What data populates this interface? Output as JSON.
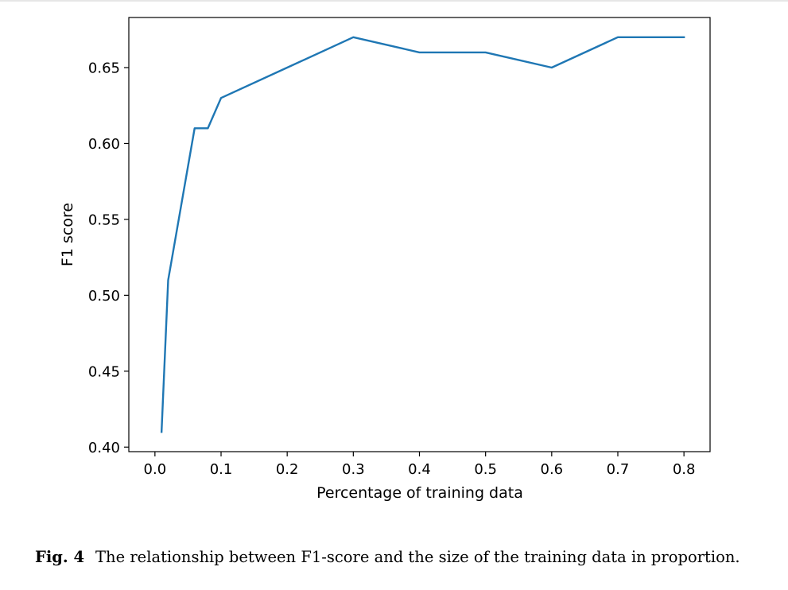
{
  "chart_data": {
    "type": "line",
    "title": "",
    "xlabel": "Percentage of training data",
    "ylabel": "F1 score",
    "xlim": [
      -0.0395,
      0.8395
    ],
    "ylim": [
      0.397,
      0.683
    ],
    "xticks": [
      0.0,
      0.1,
      0.2,
      0.3,
      0.4,
      0.5,
      0.6,
      0.7,
      0.8
    ],
    "xtick_labels": [
      "0.0",
      "0.1",
      "0.2",
      "0.3",
      "0.4",
      "0.5",
      "0.6",
      "0.7",
      "0.8"
    ],
    "yticks": [
      0.4,
      0.45,
      0.5,
      0.55,
      0.6,
      0.65
    ],
    "ytick_labels": [
      "0.40",
      "0.45",
      "0.50",
      "0.55",
      "0.60",
      "0.65"
    ],
    "grid": false,
    "line_color": "#1f77b4",
    "series": [
      {
        "x": [
          0.01,
          0.02,
          0.06,
          0.08,
          0.1,
          0.2,
          0.3,
          0.4,
          0.5,
          0.6,
          0.7,
          0.8
        ],
        "y": [
          0.41,
          0.51,
          0.61,
          0.61,
          0.63,
          0.65,
          0.67,
          0.66,
          0.66,
          0.65,
          0.67,
          0.67
        ]
      }
    ]
  },
  "caption": {
    "label": "Fig. 4",
    "text": "The relationship between F1-score and the size of the training data in proportion."
  }
}
